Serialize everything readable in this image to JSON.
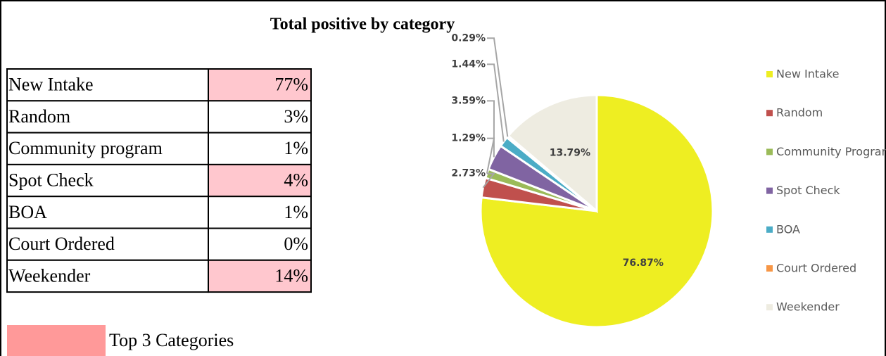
{
  "title": "Total positive by category",
  "table": {
    "rows": [
      [
        "New Intake",
        "77%"
      ],
      [
        "Random",
        "3%"
      ],
      [
        "Community program",
        "1%"
      ],
      [
        "Spot Check",
        "4%"
      ],
      [
        "BOA",
        "1%"
      ],
      [
        "Court Ordered",
        "0%"
      ],
      [
        "Weekender",
        "14%"
      ]
    ],
    "highlighted_rows": [
      0,
      3,
      6
    ],
    "highlight_color": "#ffc7ce"
  },
  "key": {
    "label": "Top 3 Categories",
    "color": "#ff9999"
  },
  "chart_data": {
    "type": "pie",
    "categories": [
      "New Intake",
      "Random",
      "Community Programs",
      "Spot Check",
      "BOA",
      "Court Ordered",
      "Weekender"
    ],
    "values": [
      76.87,
      2.73,
      1.29,
      3.59,
      1.44,
      0.29,
      13.79
    ],
    "value_labels": [
      "76.87%",
      "2.73%",
      "1.29%",
      "3.59%",
      "1.44%",
      "0.29%",
      "13.79%"
    ],
    "colors": [
      "#eeee22",
      "#c0504d",
      "#9bbb59",
      "#8064a2",
      "#4bacc6",
      "#f79646",
      "#eeece1"
    ],
    "legend": "right"
  }
}
